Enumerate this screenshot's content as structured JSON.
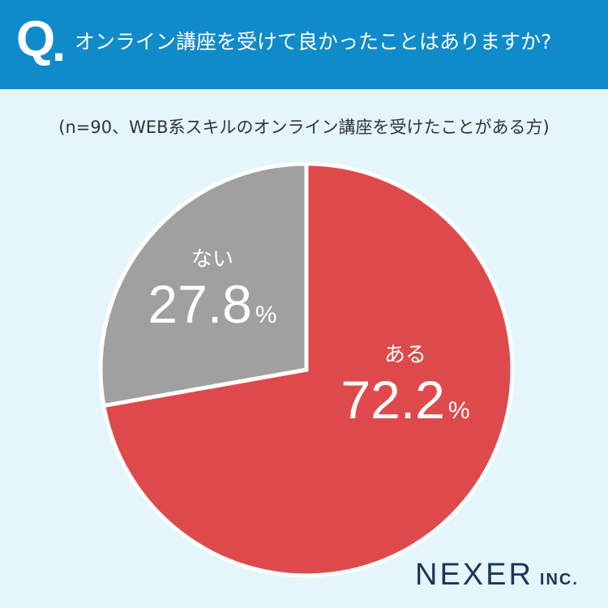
{
  "header": {
    "q_mark": "Q",
    "q_dot": ".",
    "question": "オンライン講座を受けて良かったことはありますか?"
  },
  "sample_note": "(n=90、WEB系スキルのオンライン講座を受けたことがある方)",
  "colors": {
    "header_bg": "#0f8bc9",
    "page_bg": "#e4f6fb",
    "aru": "#de4a4b",
    "nai": "#a0a0a0"
  },
  "chart_data": {
    "type": "pie",
    "categories": [
      "ある",
      "ない"
    ],
    "values": [
      72.2,
      27.8
    ],
    "unit": "%",
    "start_angle": "12 o'clock, clockwise"
  },
  "brand": {
    "name": "NEXER",
    "suffix": "INC."
  }
}
